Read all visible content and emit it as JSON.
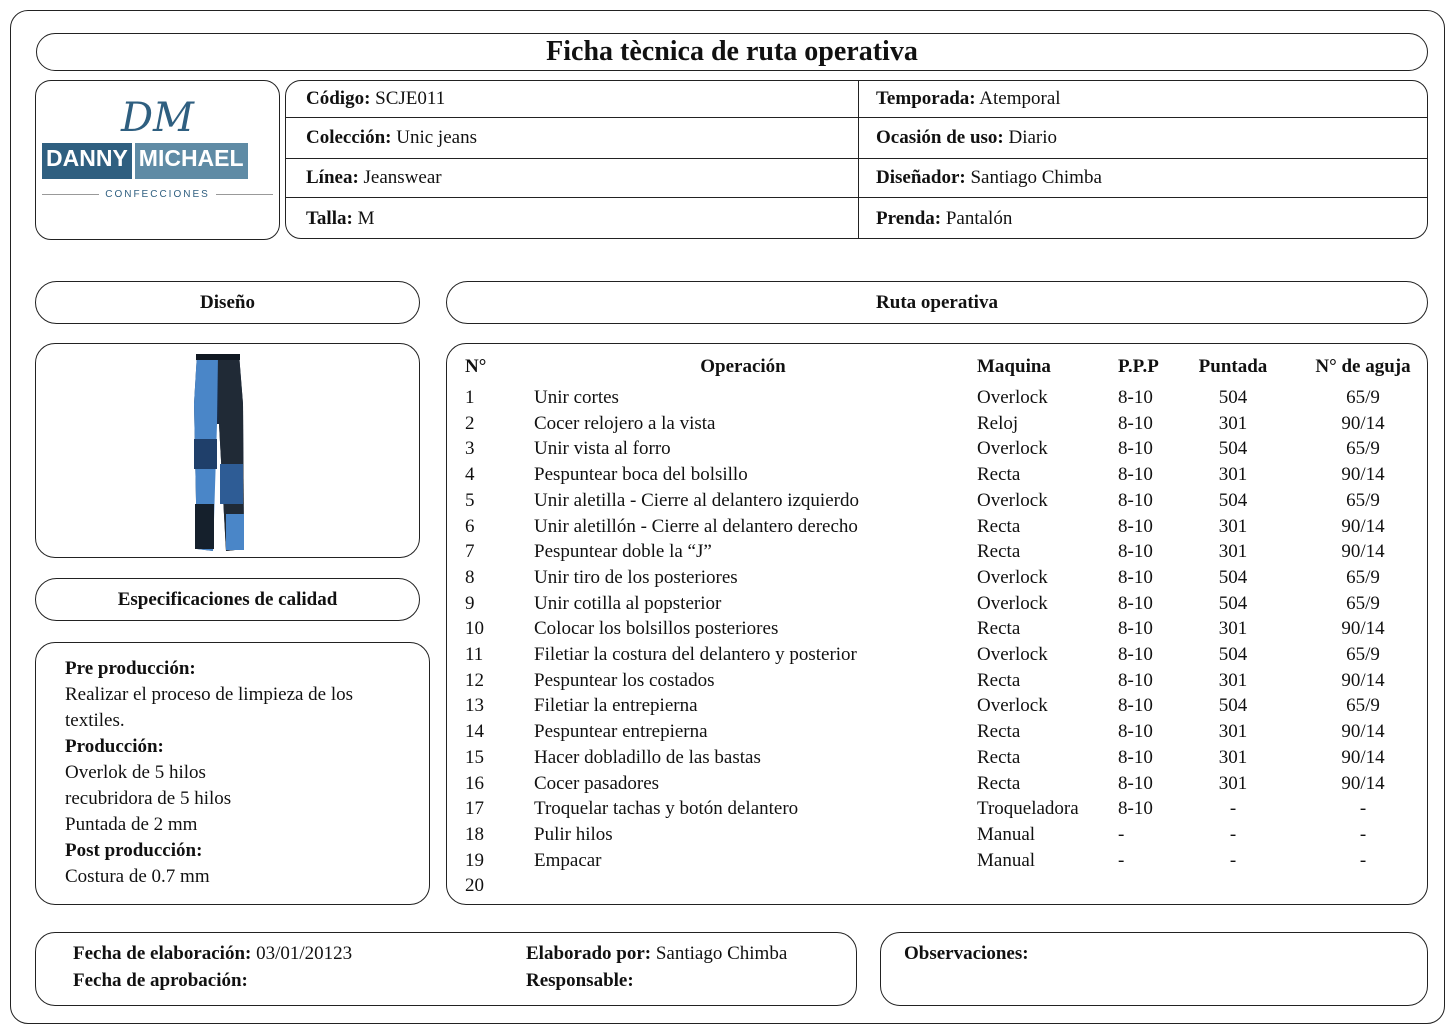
{
  "title": "Ficha tècnica de ruta operativa",
  "logo": {
    "initials": "DM",
    "name_first": "DANNY",
    "name_second": "MICHAEL",
    "subtitle": "CONFECCIONES"
  },
  "info": {
    "rows": [
      [
        {
          "label": "Código:",
          "value": "SCJE011"
        },
        {
          "label": "Temporada:",
          "value": "Atemporal"
        }
      ],
      [
        {
          "label": "Colección:",
          "value": "Unic jeans"
        },
        {
          "label": "Ocasión de uso:",
          "value": "Diario"
        }
      ],
      [
        {
          "label": "Línea:",
          "value": "Jeanswear"
        },
        {
          "label": "Diseñador:",
          "value": "Santiago Chimba"
        }
      ],
      [
        {
          "label": "Talla:",
          "value": "M"
        },
        {
          "label": "Prenda:",
          "value": "Pantalón"
        }
      ]
    ]
  },
  "sections": {
    "design": "Diseño",
    "route": "Ruta operativa",
    "quality": "Especificaciones de calidad"
  },
  "quality": [
    {
      "heading": "Pre producción:",
      "lines": [
        "Realizar el proceso de limpieza de los textiles."
      ]
    },
    {
      "heading": "Producción:",
      "lines": [
        "Overlok de 5 hilos",
        "recubridora de 5 hilos",
        "Puntada de 2 mm"
      ]
    },
    {
      "heading": "Post producción:",
      "lines": [
        "Costura de 0.7 mm"
      ]
    }
  ],
  "table": {
    "headers": [
      "N°",
      "Operación",
      "Maquina",
      "P.P.P",
      "Puntada",
      "N° de aguja"
    ],
    "rows": [
      [
        "1",
        "Unir cortes",
        "Overlock",
        "8-10",
        "504",
        "65/9"
      ],
      [
        "2",
        "Cocer relojero a la vista",
        "Reloj",
        "8-10",
        "301",
        "90/14"
      ],
      [
        "3",
        "Unir vista al forro",
        "Overlock",
        "8-10",
        "504",
        "65/9"
      ],
      [
        "4",
        "Pespuntear boca del bolsillo",
        "Recta",
        "8-10",
        "301",
        "90/14"
      ],
      [
        "5",
        "Unir aletilla - Cierre al delantero izquierdo",
        "Overlock",
        "8-10",
        "504",
        "65/9"
      ],
      [
        "6",
        "Unir aletillón - Cierre al delantero derecho",
        "Recta",
        "8-10",
        "301",
        "90/14"
      ],
      [
        "7",
        "Pespuntear doble la “J”",
        "Recta",
        "8-10",
        "301",
        "90/14"
      ],
      [
        "8",
        "Unir tiro de los posteriores",
        "Overlock",
        "8-10",
        "504",
        "65/9"
      ],
      [
        "9",
        "Unir cotilla al popsterior",
        "Overlock",
        "8-10",
        "504",
        "65/9"
      ],
      [
        "10",
        "Colocar los bolsillos posteriores",
        "Recta",
        "8-10",
        "301",
        "90/14"
      ],
      [
        "11",
        "Filetiar la costura del delantero y posterior",
        "Overlock",
        "8-10",
        "504",
        "65/9"
      ],
      [
        "12",
        "Pespuntear los costados",
        "Recta",
        "8-10",
        "301",
        "90/14"
      ],
      [
        "13",
        "Filetiar la entrepierna",
        "Overlock",
        "8-10",
        "504",
        "65/9"
      ],
      [
        "14",
        "Pespuntear entrepierna",
        "Recta",
        "8-10",
        "301",
        "90/14"
      ],
      [
        "15",
        "Hacer dobladillo de las bastas",
        "Recta",
        "8-10",
        "301",
        "90/14"
      ],
      [
        "16",
        "Cocer pasadores",
        "Recta",
        "8-10",
        "301",
        "90/14"
      ],
      [
        "17",
        "Troquelar tachas y botón delantero",
        "Troqueladora",
        "8-10",
        "-",
        "-"
      ],
      [
        "18",
        "Pulir hilos",
        "Manual",
        "-",
        "-",
        "-"
      ],
      [
        "19",
        "Empacar",
        "Manual",
        "-",
        "-",
        "-"
      ],
      [
        "20"
      ]
    ]
  },
  "footer": {
    "left": [
      {
        "label": "Fecha de elaboración:",
        "value": "03/01/20123"
      },
      {
        "label": "Fecha de aprobación:"
      }
    ],
    "middle": [
      {
        "label": "Elaborado por:",
        "value": "Santiago Chimba"
      },
      {
        "label": "Responsable:"
      }
    ],
    "observations": "Observaciones:"
  }
}
